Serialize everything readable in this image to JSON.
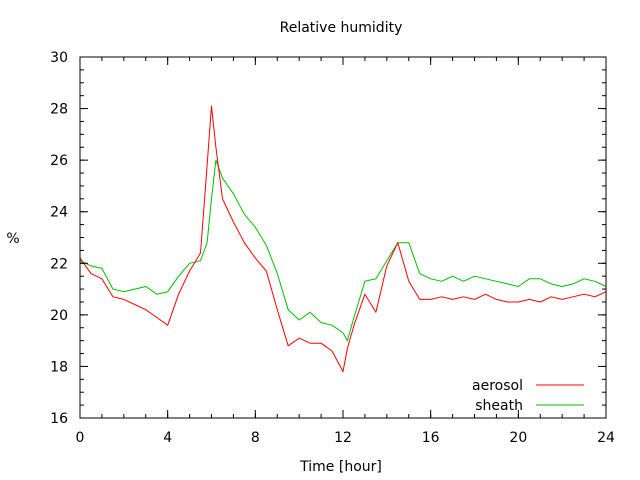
{
  "chart_data": {
    "type": "line",
    "title": "Relative humidity",
    "xlabel": "Time [hour]",
    "ylabel": "%",
    "xlim": [
      0,
      24
    ],
    "ylim": [
      16,
      30
    ],
    "x_ticks": [
      0,
      4,
      8,
      12,
      16,
      20,
      24
    ],
    "y_ticks": [
      16,
      18,
      20,
      22,
      24,
      26,
      28,
      30
    ],
    "x_minor_step": 1,
    "y_minor_step": 0.5,
    "grid": false,
    "legend_position": "bottom-right",
    "series": [
      {
        "name": "aerosol",
        "color": "#ff0000",
        "x": [
          0,
          0.5,
          1,
          1.5,
          2,
          2.5,
          3,
          3.5,
          4,
          4.5,
          5,
          5.5,
          5.8,
          6,
          6.2,
          6.5,
          7,
          7.5,
          8,
          8.5,
          9,
          9.5,
          10,
          10.5,
          11,
          11.5,
          12,
          12.2,
          12.5,
          13,
          13.5,
          14,
          14.5,
          15,
          15.5,
          16,
          16.5,
          17,
          17.5,
          18,
          18.5,
          19,
          19.5,
          20,
          20.5,
          21,
          21.5,
          22,
          22.5,
          23,
          23.5,
          24
        ],
        "y": [
          22.2,
          21.6,
          21.4,
          20.7,
          20.6,
          20.4,
          20.2,
          19.9,
          19.6,
          20.8,
          21.7,
          22.4,
          25.8,
          28.1,
          26.5,
          24.5,
          23.6,
          22.8,
          22.2,
          21.7,
          20.2,
          18.8,
          19.1,
          18.9,
          18.9,
          18.6,
          17.8,
          18.7,
          19.6,
          20.8,
          20.1,
          21.9,
          22.8,
          21.3,
          20.6,
          20.6,
          20.7,
          20.6,
          20.7,
          20.6,
          20.8,
          20.6,
          20.5,
          20.5,
          20.6,
          20.5,
          20.7,
          20.6,
          20.7,
          20.8,
          20.7,
          20.9
        ]
      },
      {
        "name": "sheath",
        "color": "#00c000",
        "x": [
          0,
          0.5,
          1,
          1.5,
          2,
          2.5,
          3,
          3.5,
          4,
          4.5,
          5,
          5.5,
          5.8,
          6,
          6.2,
          6.5,
          7,
          7.5,
          8,
          8.5,
          9,
          9.5,
          10,
          10.5,
          11,
          11.5,
          12,
          12.2,
          12.5,
          13,
          13.5,
          14,
          14.5,
          15,
          15.5,
          16,
          16.5,
          17,
          17.5,
          18,
          18.5,
          19,
          19.5,
          20,
          20.5,
          21,
          21.5,
          22,
          22.5,
          23,
          23.5,
          24
        ],
        "y": [
          22.1,
          21.9,
          21.8,
          21.0,
          20.9,
          21.0,
          21.1,
          20.8,
          20.9,
          21.5,
          22.0,
          22.1,
          22.8,
          24.5,
          26.0,
          25.3,
          24.7,
          23.9,
          23.4,
          22.7,
          21.6,
          20.2,
          19.8,
          20.1,
          19.7,
          19.6,
          19.3,
          19.0,
          19.9,
          21.3,
          21.4,
          22.1,
          22.8,
          22.8,
          21.6,
          21.4,
          21.3,
          21.5,
          21.3,
          21.5,
          21.4,
          21.3,
          21.2,
          21.1,
          21.4,
          21.4,
          21.2,
          21.1,
          21.2,
          21.4,
          21.3,
          21.1
        ]
      }
    ]
  }
}
